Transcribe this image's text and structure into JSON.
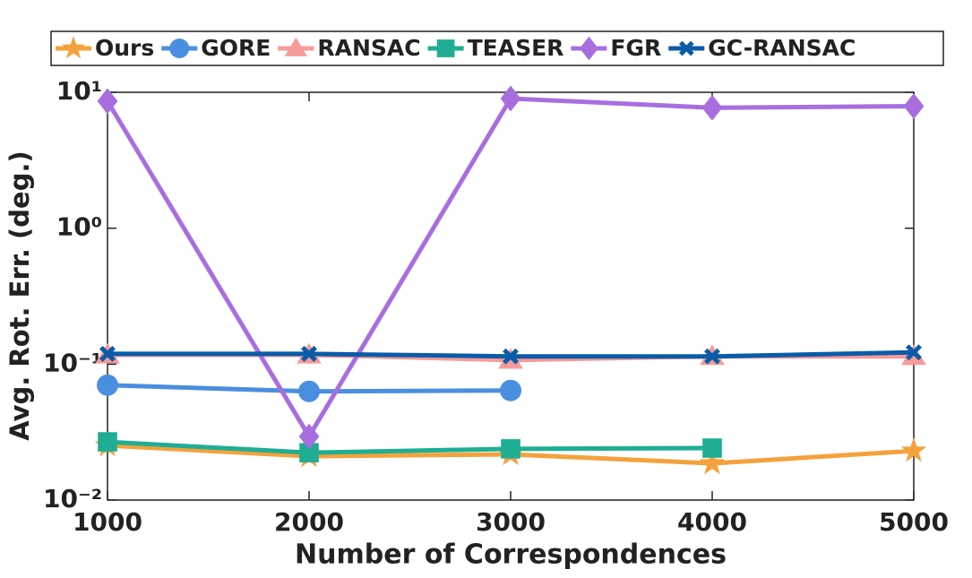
{
  "chart_data": {
    "type": "line",
    "xlabel": "Number of Correspondences",
    "ylabel": "Avg. Rot. Err. (deg.)",
    "x": [
      1000,
      2000,
      3000,
      4000,
      5000
    ],
    "xlim": [
      1000,
      5000
    ],
    "xticks": [
      1000,
      2000,
      3000,
      4000,
      5000
    ],
    "ylim": [
      0.01,
      10
    ],
    "ylog": true,
    "yticks": [
      {
        "value": 0.01,
        "label": "10⁻²"
      },
      {
        "value": 0.1,
        "label": "10⁻¹"
      },
      {
        "value": 1,
        "label": "10⁰"
      },
      {
        "value": 10,
        "label": "10¹"
      }
    ],
    "legend": "top",
    "series": [
      {
        "name": "Ours",
        "color": "#f4a23c",
        "marker": "star",
        "values": [
          0.0252,
          0.021,
          0.0217,
          0.0186,
          0.023
        ]
      },
      {
        "name": "GORE",
        "color": "#4a8fdf",
        "marker": "circle",
        "values": [
          0.07,
          0.063,
          0.064,
          null,
          null
        ]
      },
      {
        "name": "RANSAC",
        "color": "#f79a9a",
        "marker": "triangle",
        "values": [
          0.117,
          0.117,
          0.107,
          0.114,
          0.114
        ]
      },
      {
        "name": "TEASER",
        "color": "#1fae94",
        "marker": "square",
        "values": [
          0.0268,
          0.0223,
          0.0238,
          0.0241,
          null
        ]
      },
      {
        "name": "FGR",
        "color": "#a86ee0",
        "marker": "diamond",
        "values": [
          8.6,
          0.0294,
          9.0,
          7.7,
          7.9
        ]
      },
      {
        "name": "GC-RANSAC",
        "color": "#0a5ca8",
        "marker": "x",
        "values": [
          0.119,
          0.119,
          0.114,
          0.114,
          0.122
        ]
      }
    ]
  }
}
